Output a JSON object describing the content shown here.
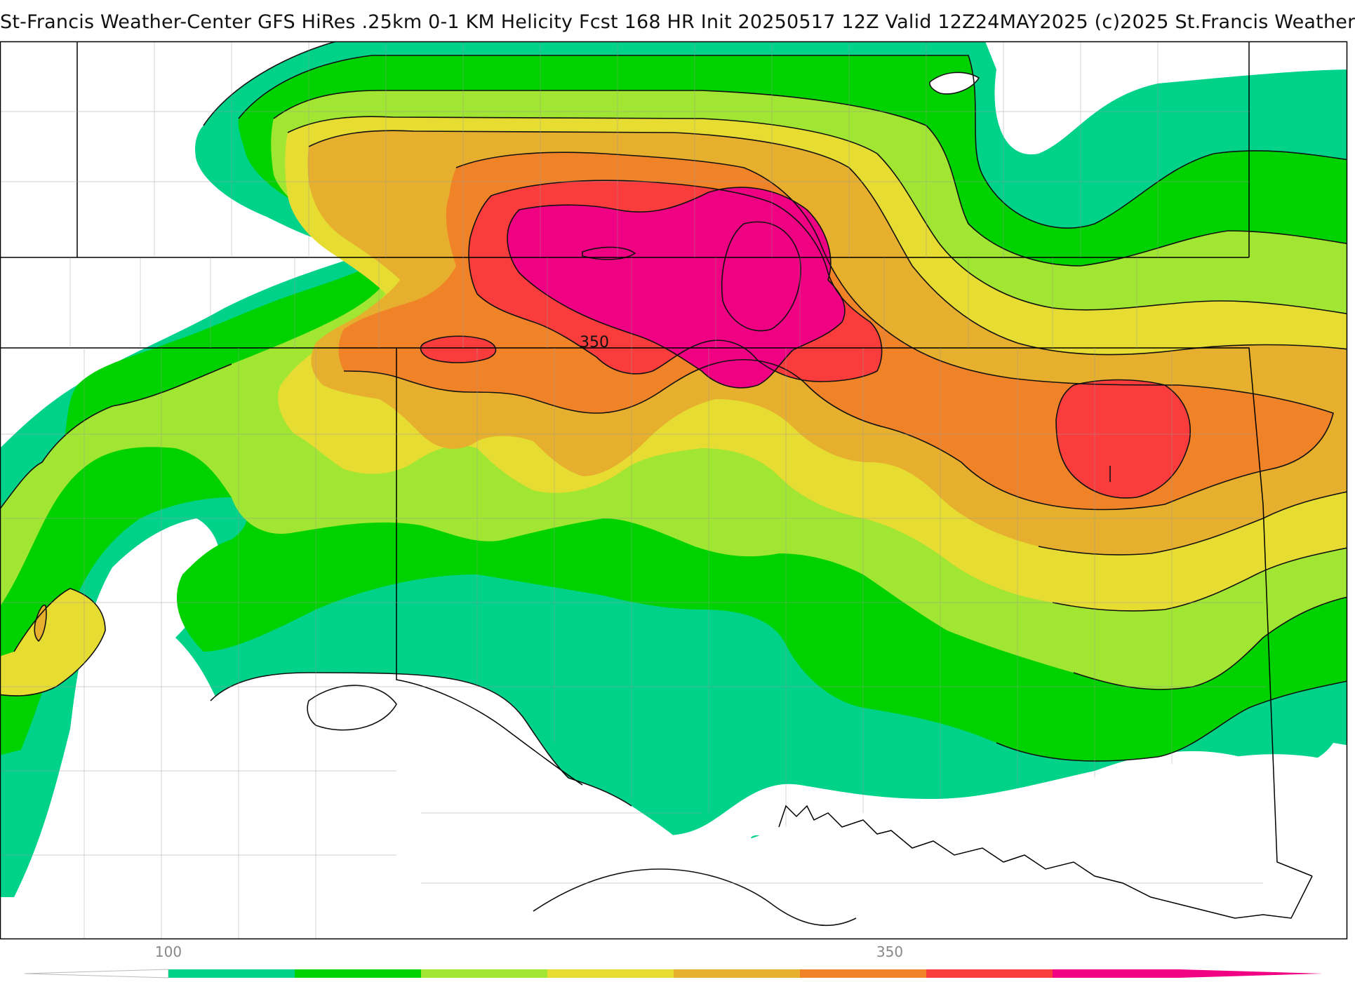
{
  "header": {
    "title": "St-Francis Weather-Center GFS HiRes .25km 0-1 KM Helicity Fcst 168 HR Init 20250517 12Z  Valid 12Z24MAY2025    (c)2025 St.Francis Weather"
  },
  "map": {
    "contour_label": "350"
  },
  "colorbar": {
    "labels": [
      "100",
      "350"
    ],
    "colors": [
      "#00d28a",
      "#00d200",
      "#a0e632",
      "#e6dc32",
      "#e6af2d",
      "#f08228",
      "#fa3c3c",
      "#f00082"
    ],
    "background": "#ffffff"
  }
}
